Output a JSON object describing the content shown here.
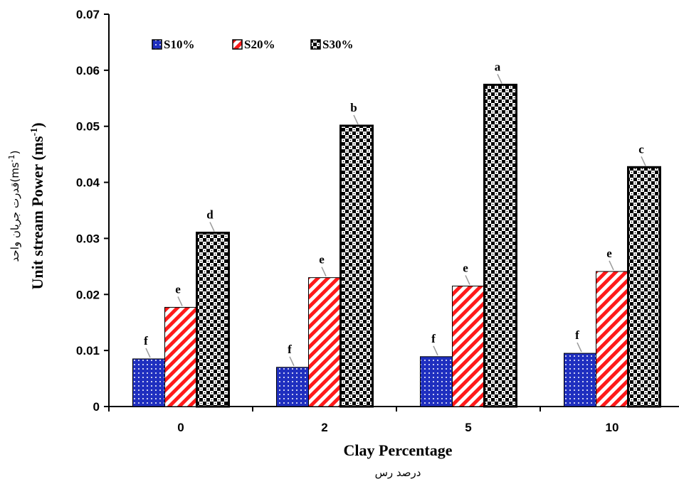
{
  "chart_data": {
    "type": "bar",
    "categories": [
      "0",
      "2",
      "5",
      "10"
    ],
    "series": [
      {
        "name": "S10%",
        "values": [
          0.0085,
          0.007,
          0.0089,
          0.0095
        ],
        "labels": [
          "f",
          "f",
          "f",
          "f"
        ],
        "color": "#1f2fbf",
        "pattern": "dots"
      },
      {
        "name": "S20%",
        "values": [
          0.0177,
          0.023,
          0.0215,
          0.0241
        ],
        "labels": [
          "e",
          "e",
          "e",
          "e"
        ],
        "color": "#ff1a1a",
        "pattern": "diagonal-stripes"
      },
      {
        "name": "S30%",
        "values": [
          0.031,
          0.0501,
          0.0574,
          0.0427
        ],
        "labels": [
          "d",
          "b",
          "a",
          "c"
        ],
        "color": "#000000",
        "pattern": "checker"
      }
    ],
    "xlabel": "Clay Percentage",
    "xlabel_sub": "درصد رس",
    "ylabel": "Unit stream Power (ms",
    "ylabel_sup": "-1",
    "ylabel_end": ")",
    "ylabel_sub": "قدرت جریان واحد(ms",
    "ylabel_sub_sup": "-1",
    "ylabel_sub_end": ")",
    "ylim": [
      0,
      0.07
    ],
    "yticks": [
      "0",
      "0.01",
      "0.02",
      "0.03",
      "0.04",
      "0.05",
      "0.06",
      "0.07"
    ],
    "grid": false,
    "legend_position": "top-left"
  }
}
